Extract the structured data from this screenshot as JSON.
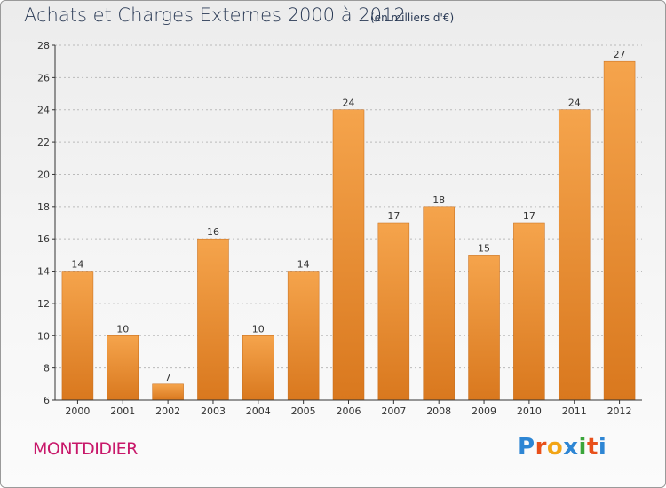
{
  "header": {
    "title": "Achats et Charges Externes 2000 à 2012",
    "subtitle": "(en milliers d'€)"
  },
  "footer": {
    "commune": "MONTDIDIER",
    "logo_letters": [
      "P",
      "r",
      "o",
      "x",
      "i",
      "t",
      "i"
    ],
    "logo_colors": [
      "#2e86d4",
      "#e8501a",
      "#f2a516",
      "#2e86d4",
      "#3aa53a",
      "#e8501a",
      "#2e86d4"
    ]
  },
  "colors": {
    "bar_top": "#f5a44c",
    "bar_bottom": "#d9781e",
    "axis": "#333333",
    "grid": "#bbbbbb",
    "text": "#333333"
  },
  "chart_data": {
    "type": "bar",
    "categories": [
      "2000",
      "2001",
      "2002",
      "2003",
      "2004",
      "2005",
      "2006",
      "2007",
      "2008",
      "2009",
      "2010",
      "2011",
      "2012"
    ],
    "values": [
      14,
      10,
      7,
      16,
      10,
      14,
      24,
      17,
      18,
      15,
      17,
      24,
      27
    ],
    "title": "Achats et Charges Externes 2000 à 2012",
    "subtitle": "(en milliers d'€)",
    "ylim": [
      6,
      28
    ],
    "yticks": [
      6,
      8,
      10,
      12,
      14,
      16,
      18,
      20,
      22,
      24,
      26,
      28
    ],
    "grid": true
  }
}
